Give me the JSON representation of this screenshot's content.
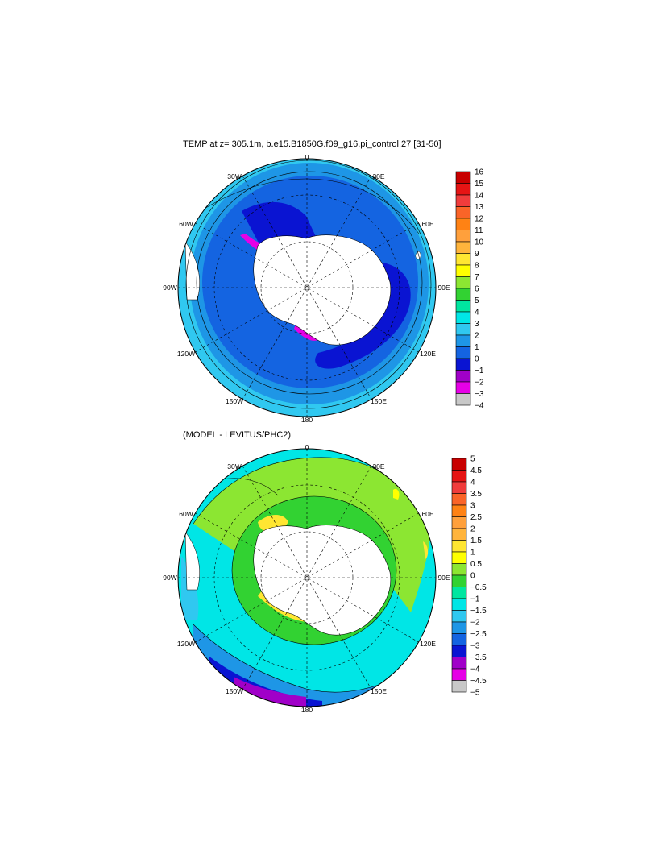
{
  "chart_data": [
    {
      "type": "heatmap",
      "projection": "south polar stereographic",
      "title": "TEMP at z= 305.1m, b.e15.B1850G.f09_g16.pi_control.27 [31-50]",
      "longitude_labels": [
        "0",
        "30E",
        "60E",
        "90E",
        "120E",
        "150E",
        "180",
        "150W",
        "120W",
        "90W",
        "60W",
        "30W"
      ],
      "colorbar": {
        "labels": [
          "16",
          "15",
          "14",
          "13",
          "12",
          "11",
          "10",
          "9",
          "8",
          "7",
          "6",
          "5",
          "4",
          "3",
          "2",
          "1",
          "0",
          "−1",
          "−2",
          "−3",
          "−4"
        ],
        "colors": [
          "#c80000",
          "#e61414",
          "#f03c3c",
          "#fa6428",
          "#ff8214",
          "#ffa03c",
          "#ffb43c",
          "#ffe632",
          "#ffff00",
          "#8ce632",
          "#32d232",
          "#00e6a0",
          "#00e6e6",
          "#30c8f0",
          "#1e96e6",
          "#1464e1",
          "#0a14d2",
          "#a000c8",
          "#e600e6",
          "#c8c8c8",
          "#787878"
        ]
      },
      "dominant_range": [
        -2,
        4
      ]
    },
    {
      "type": "heatmap",
      "projection": "south polar stereographic",
      "title": "(MODEL - LEVITUS/PHC2)",
      "longitude_labels": [
        "0",
        "30E",
        "60E",
        "90E",
        "120E",
        "150E",
        "180",
        "150W",
        "120W",
        "90W",
        "60W",
        "30W"
      ],
      "colorbar": {
        "labels": [
          "5",
          "4.5",
          "4",
          "3.5",
          "3",
          "2.5",
          "2",
          "1.5",
          "1",
          "0.5",
          "0",
          "−0.5",
          "−1",
          "−1.5",
          "−2",
          "−2.5",
          "−3",
          "−3.5",
          "−4",
          "−4.5",
          "−5"
        ],
        "colors": [
          "#c80000",
          "#e61414",
          "#f03c3c",
          "#fa6428",
          "#ff8214",
          "#ffa03c",
          "#ffb43c",
          "#ffe632",
          "#ffff00",
          "#8ce632",
          "#32d232",
          "#00e6a0",
          "#00e6e6",
          "#30c8f0",
          "#1e96e6",
          "#1464e1",
          "#0a14d2",
          "#a000c8",
          "#e600e6",
          "#c8c8c8",
          "#787878"
        ]
      },
      "dominant_range": [
        -1.5,
        1
      ]
    }
  ]
}
